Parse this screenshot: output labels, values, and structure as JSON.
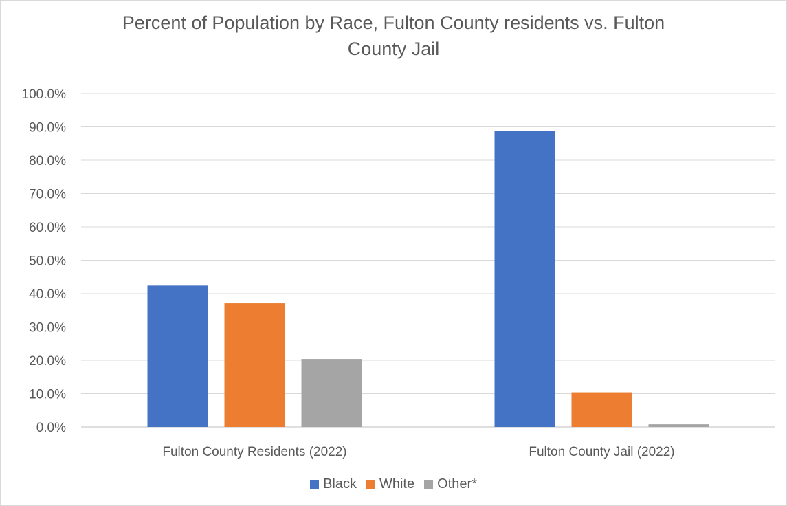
{
  "chart_data": {
    "type": "bar",
    "title": "Percent of Population by Race, Fulton County residents vs. Fulton County Jail",
    "title_lines": [
      "Percent of Population by Race, Fulton County residents vs. Fulton",
      "County Jail"
    ],
    "categories": [
      "Fulton County Residents (2022)",
      "Fulton County Jail (2022)"
    ],
    "series": [
      {
        "name": "Black",
        "color": "#4472c4",
        "values": [
          42.4,
          88.8
        ]
      },
      {
        "name": "White",
        "color": "#ed7d31",
        "values": [
          37.1,
          10.4
        ]
      },
      {
        "name": "Other*",
        "color": "#a5a5a5",
        "values": [
          20.4,
          0.8
        ]
      }
    ],
    "ylim": [
      0,
      100
    ],
    "yticks": [
      "0.0%",
      "10.0%",
      "20.0%",
      "30.0%",
      "40.0%",
      "50.0%",
      "60.0%",
      "70.0%",
      "80.0%",
      "90.0%",
      "100.0%"
    ],
    "grid": true,
    "legend": "bottom"
  }
}
